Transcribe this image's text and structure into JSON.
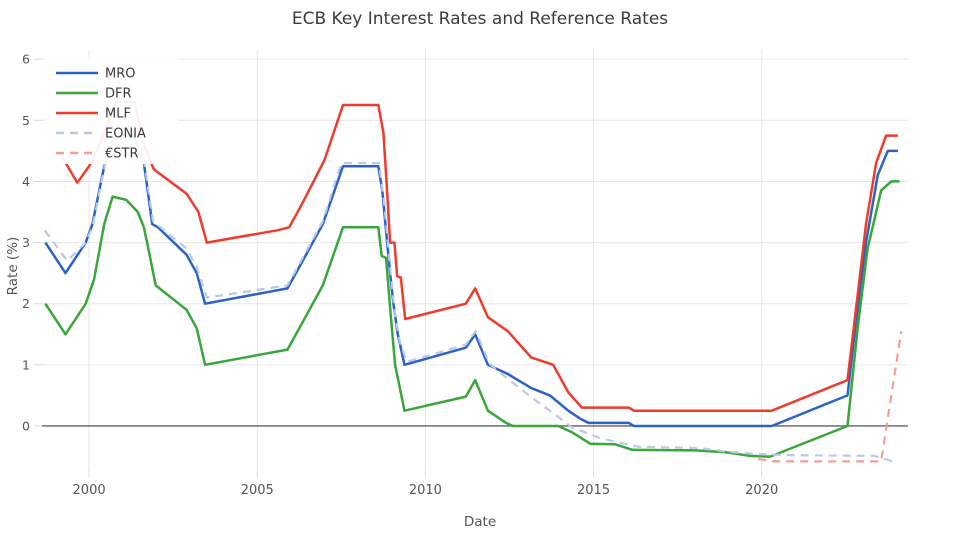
{
  "title": "ECB Key Interest Rates and Reference Rates",
  "axes": {
    "x_label": "Date",
    "y_label": "Rate (%)",
    "x_tick_labels": [
      "2000",
      "2005",
      "2010",
      "2015",
      "2020"
    ],
    "y_tick_labels": [
      "0",
      "1",
      "2",
      "3",
      "4",
      "5",
      "6"
    ]
  },
  "colors": {
    "grid": "#e6e6e6",
    "zero_line": "#606060",
    "tick_text": "#545454",
    "title_text": "#3b3b3b",
    "legend_text": "#3a3a3a",
    "background": "#ffffff"
  },
  "chart_data": {
    "type": "line",
    "title": "ECB Key Interest Rates and Reference Rates",
    "xlabel": "Date",
    "ylabel": "Rate (%)",
    "xlim": [
      1998.6,
      2024.35
    ],
    "ylim": [
      -0.72,
      6.15
    ],
    "x_ticks": [
      2000,
      2005,
      2010,
      2015,
      2020
    ],
    "y_ticks": [
      0,
      1,
      2,
      3,
      4,
      5,
      6
    ],
    "grid": true,
    "legend_position": "top-left",
    "series": [
      {
        "id": "mro",
        "name": "MRO",
        "color": "#2b63c5",
        "dash": false,
        "points": [
          [
            1998.7,
            3.0
          ],
          [
            1999.3,
            2.5
          ],
          [
            1999.9,
            3.0
          ],
          [
            2000.1,
            3.3
          ],
          [
            2000.45,
            4.25
          ],
          [
            2000.8,
            4.75
          ],
          [
            2001.35,
            4.75
          ],
          [
            2001.63,
            4.3
          ],
          [
            2001.88,
            3.3
          ],
          [
            2002.05,
            3.25
          ],
          [
            2002.9,
            2.8
          ],
          [
            2003.2,
            2.5
          ],
          [
            2003.45,
            2.0
          ],
          [
            2005.9,
            2.25
          ],
          [
            2006.25,
            2.6
          ],
          [
            2006.95,
            3.3
          ],
          [
            2007.55,
            4.25
          ],
          [
            2008.6,
            4.25
          ],
          [
            2008.72,
            3.85
          ],
          [
            2008.82,
            3.25
          ],
          [
            2008.95,
            2.5
          ],
          [
            2009.05,
            2.0
          ],
          [
            2009.18,
            1.5
          ],
          [
            2009.38,
            1.0
          ],
          [
            2011.2,
            1.28
          ],
          [
            2011.48,
            1.5
          ],
          [
            2011.86,
            1.0
          ],
          [
            2012.45,
            0.85
          ],
          [
            2013.15,
            0.62
          ],
          [
            2013.7,
            0.5
          ],
          [
            2014.25,
            0.25
          ],
          [
            2014.6,
            0.12
          ],
          [
            2014.85,
            0.05
          ],
          [
            2016.05,
            0.05
          ],
          [
            2016.2,
            0.0
          ],
          [
            2020.3,
            0.0
          ],
          [
            2022.55,
            0.5
          ],
          [
            2022.8,
            1.7
          ],
          [
            2023.1,
            3.0
          ],
          [
            2023.45,
            4.1
          ],
          [
            2023.75,
            4.5
          ],
          [
            2024.05,
            4.5
          ]
        ]
      },
      {
        "id": "dfr",
        "name": "DFR",
        "color": "#38a63a",
        "dash": false,
        "points": [
          [
            1998.7,
            2.0
          ],
          [
            1999.3,
            1.5
          ],
          [
            1999.9,
            2.0
          ],
          [
            2000.15,
            2.4
          ],
          [
            2000.45,
            3.3
          ],
          [
            2000.7,
            3.75
          ],
          [
            2001.1,
            3.7
          ],
          [
            2001.45,
            3.5
          ],
          [
            2001.63,
            3.25
          ],
          [
            2001.8,
            2.8
          ],
          [
            2001.98,
            2.3
          ],
          [
            2002.9,
            1.9
          ],
          [
            2003.2,
            1.6
          ],
          [
            2003.45,
            1.0
          ],
          [
            2005.9,
            1.25
          ],
          [
            2006.25,
            1.6
          ],
          [
            2006.95,
            2.3
          ],
          [
            2007.55,
            3.25
          ],
          [
            2008.6,
            3.25
          ],
          [
            2008.7,
            2.78
          ],
          [
            2008.83,
            2.75
          ],
          [
            2008.97,
            1.8
          ],
          [
            2009.1,
            1.0
          ],
          [
            2009.38,
            0.25
          ],
          [
            2011.2,
            0.48
          ],
          [
            2011.48,
            0.75
          ],
          [
            2011.86,
            0.25
          ],
          [
            2012.4,
            0.05
          ],
          [
            2012.6,
            0.0
          ],
          [
            2013.95,
            0.0
          ],
          [
            2014.35,
            -0.1
          ],
          [
            2014.9,
            -0.29
          ],
          [
            2015.65,
            -0.3
          ],
          [
            2016.15,
            -0.39
          ],
          [
            2018.05,
            -0.4
          ],
          [
            2018.95,
            -0.43
          ],
          [
            2019.65,
            -0.49
          ],
          [
            2020.25,
            -0.5
          ],
          [
            2022.55,
            0.0
          ],
          [
            2022.85,
            1.6
          ],
          [
            2023.15,
            2.9
          ],
          [
            2023.55,
            3.85
          ],
          [
            2023.85,
            4.0
          ],
          [
            2024.1,
            4.0
          ]
        ]
      },
      {
        "id": "mlf",
        "name": "MLF",
        "color": "#ef3b2d",
        "dash": false,
        "points": [
          [
            1999.2,
            4.4
          ],
          [
            1999.65,
            3.98
          ],
          [
            2000.0,
            4.25
          ],
          [
            2000.35,
            4.65
          ],
          [
            2000.8,
            5.3
          ],
          [
            2001.35,
            5.3
          ],
          [
            2001.6,
            4.65
          ],
          [
            2001.92,
            4.2
          ],
          [
            2002.9,
            3.8
          ],
          [
            2003.25,
            3.5
          ],
          [
            2003.5,
            3.0
          ],
          [
            2005.6,
            3.2
          ],
          [
            2005.95,
            3.25
          ],
          [
            2006.3,
            3.6
          ],
          [
            2007.0,
            4.35
          ],
          [
            2007.55,
            5.25
          ],
          [
            2008.6,
            5.25
          ],
          [
            2008.75,
            4.8
          ],
          [
            2008.85,
            3.95
          ],
          [
            2008.95,
            3.0
          ],
          [
            2009.08,
            3.0
          ],
          [
            2009.16,
            2.45
          ],
          [
            2009.27,
            2.43
          ],
          [
            2009.4,
            1.75
          ],
          [
            2011.2,
            2.0
          ],
          [
            2011.48,
            2.25
          ],
          [
            2011.86,
            1.78
          ],
          [
            2012.45,
            1.55
          ],
          [
            2013.15,
            1.12
          ],
          [
            2013.8,
            1.0
          ],
          [
            2014.25,
            0.55
          ],
          [
            2014.65,
            0.3
          ],
          [
            2016.05,
            0.3
          ],
          [
            2016.2,
            0.25
          ],
          [
            2020.3,
            0.25
          ],
          [
            2022.55,
            0.75
          ],
          [
            2022.8,
            1.9
          ],
          [
            2023.1,
            3.3
          ],
          [
            2023.4,
            4.3
          ],
          [
            2023.7,
            4.75
          ],
          [
            2024.05,
            4.75
          ]
        ]
      },
      {
        "id": "eonia",
        "name": "EONIA",
        "color": "#b7c9e8",
        "dash": true,
        "points": [
          [
            1998.68,
            3.2
          ],
          [
            1999.35,
            2.7
          ],
          [
            1999.9,
            3.0
          ],
          [
            2000.1,
            3.25
          ],
          [
            2000.5,
            4.35
          ],
          [
            2000.85,
            4.8
          ],
          [
            2001.35,
            4.8
          ],
          [
            2001.63,
            4.35
          ],
          [
            2001.9,
            3.35
          ],
          [
            2002.9,
            2.9
          ],
          [
            2003.2,
            2.6
          ],
          [
            2003.5,
            2.1
          ],
          [
            2005.9,
            2.3
          ],
          [
            2006.25,
            2.65
          ],
          [
            2006.95,
            3.35
          ],
          [
            2007.5,
            4.3
          ],
          [
            2008.62,
            4.3
          ],
          [
            2008.78,
            3.6
          ],
          [
            2008.95,
            2.6
          ],
          [
            2009.1,
            1.8
          ],
          [
            2009.25,
            1.35
          ],
          [
            2009.45,
            1.05
          ],
          [
            2011.2,
            1.33
          ],
          [
            2011.5,
            1.55
          ],
          [
            2011.9,
            1.02
          ],
          [
            2012.5,
            0.75
          ],
          [
            2013.2,
            0.45
          ],
          [
            2013.9,
            0.17
          ],
          [
            2014.35,
            -0.02
          ],
          [
            2015.2,
            -0.2
          ],
          [
            2015.6,
            -0.25
          ],
          [
            2016.35,
            -0.34
          ],
          [
            2018.1,
            -0.36
          ],
          [
            2019.0,
            -0.42
          ],
          [
            2019.85,
            -0.46
          ],
          [
            2021.0,
            -0.48
          ],
          [
            2023.35,
            -0.49
          ],
          [
            2023.9,
            -0.58
          ]
        ]
      },
      {
        "id": "estr",
        "name": "€STR",
        "color": "#f49c9c",
        "dash": true,
        "points": [
          [
            2019.9,
            -0.54
          ],
          [
            2020.4,
            -0.58
          ],
          [
            2023.55,
            -0.58
          ],
          [
            2024.15,
            1.55
          ]
        ]
      }
    ]
  }
}
